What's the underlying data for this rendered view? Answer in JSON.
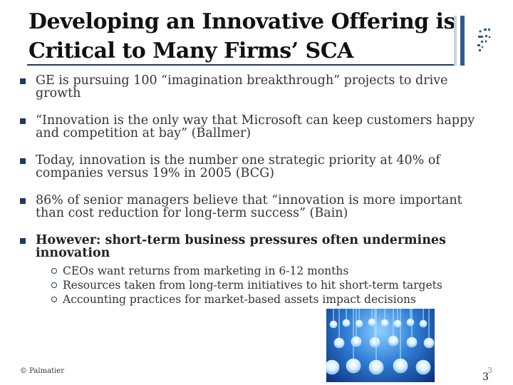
{
  "slide": {
    "title_line1": "Developing an Innovative Offering is",
    "title_line2": "Critical to Many Firms’ SCA",
    "bullets": [
      "GE is pursuing 100 “imagination breakthrough” projects to drive growth",
      "“Innovation is the only way that Microsoft can keep customers happy and competition at bay” (Ballmer)",
      "Today, innovation is the number one strategic priority at 40% of companies versus 19% in 2005 (BCG)",
      "86% of senior managers believe that “innovation is more important than cost reduction for long-term success” (Bain)",
      "However: short-term business pressures often undermines innovation"
    ],
    "subbullets": [
      "CEOs want returns from marketing in 6-12 months",
      "Resources taken from long-term initiatives to hit short-term targets",
      "Accounting practices for market-based assets impact decisions"
    ],
    "footer": "© Palmatier",
    "page_number": "3",
    "page_number_echo": "3"
  },
  "colors": {
    "bullet_marker": "#1f3864",
    "accent_bar": "#2e5c8a",
    "title_text": "#111111",
    "body_text": "#333333"
  },
  "icons": {
    "logo": "dotted-logo-icon",
    "image": "lightbulbs-photo"
  }
}
